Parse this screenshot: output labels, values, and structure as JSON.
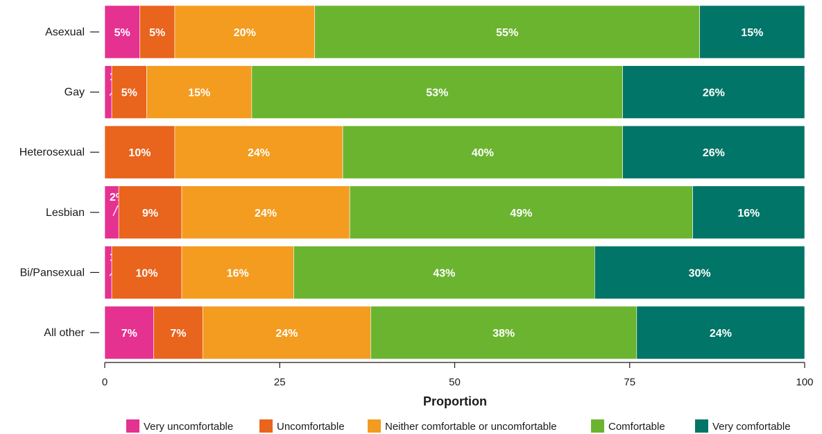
{
  "chart_data": {
    "type": "bar",
    "orientation": "horizontal",
    "stacked": true,
    "xlabel": "Proportion",
    "ylabel": "",
    "xlim": [
      0,
      100
    ],
    "xticks": [
      "0",
      "25",
      "50",
      "75",
      "100"
    ],
    "grid": false,
    "legend_position": "bottom",
    "categories": [
      "Asexual",
      "Gay",
      "Heterosexual",
      "Lesbian",
      "Bi/Pansexual",
      "All other"
    ],
    "series": [
      {
        "name": "Very uncomfortable",
        "color": "#e5318f",
        "values": [
          5,
          1,
          0,
          2,
          1,
          7
        ],
        "labels": [
          "5%",
          "1%",
          "",
          "2%",
          "1%",
          "7%"
        ]
      },
      {
        "name": "Uncomfortable",
        "color": "#e9641d",
        "values": [
          5,
          5,
          10,
          9,
          10,
          7
        ],
        "labels": [
          "5%",
          "5%",
          "10%",
          "9%",
          "10%",
          "7%"
        ]
      },
      {
        "name": "Neither comfortable or uncomfortable",
        "color": "#f39c1f",
        "values": [
          20,
          15,
          24,
          24,
          16,
          24
        ],
        "labels": [
          "20%",
          "15%",
          "24%",
          "24%",
          "16%",
          "24%"
        ]
      },
      {
        "name": "Comfortable",
        "color": "#6bb430",
        "values": [
          55,
          53,
          40,
          49,
          43,
          38
        ],
        "labels": [
          "55%",
          "53%",
          "40%",
          "49%",
          "43%",
          "38%"
        ]
      },
      {
        "name": "Very comfortable",
        "color": "#017567",
        "values": [
          15,
          26,
          26,
          16,
          30,
          24
        ],
        "labels": [
          "15%",
          "26%",
          "26%",
          "16%",
          "30%",
          "24%"
        ]
      }
    ]
  }
}
